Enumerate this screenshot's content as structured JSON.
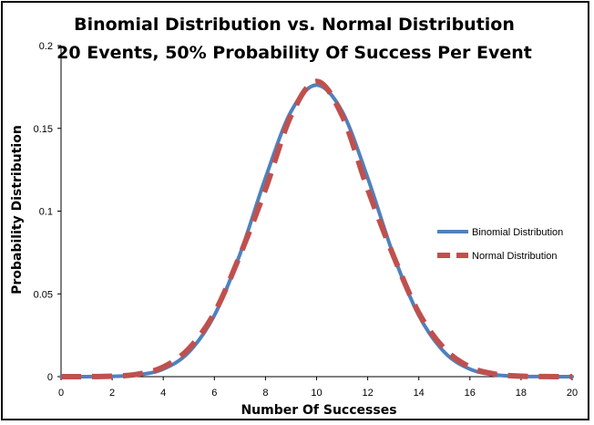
{
  "chart_data": {
    "type": "line",
    "title": "Binomial Distribution vs. Normal Distribution",
    "subtitle": "20 Events, 50% Probability Of Success Per Event",
    "xlabel": "Number Of Successes",
    "ylabel": "Probability Distribution",
    "xlim": [
      0,
      20
    ],
    "ylim": [
      0,
      0.2
    ],
    "x_ticks": [
      "0",
      "2",
      "4",
      "6",
      "8",
      "10",
      "12",
      "14",
      "16",
      "18",
      "20"
    ],
    "y_ticks": [
      "0",
      "0.05",
      "0.1",
      "0.15",
      "0.2"
    ],
    "grid": false,
    "legend_position": "right",
    "x": [
      0,
      1,
      2,
      3,
      4,
      5,
      6,
      7,
      8,
      9,
      10,
      11,
      12,
      13,
      14,
      15,
      16,
      17,
      18,
      19,
      20
    ],
    "series": [
      {
        "name": "Binomial Distribution",
        "color": "#4f81bd",
        "style": "solid",
        "values": [
          1e-06,
          2e-05,
          0.0002,
          0.0011,
          0.0046,
          0.0148,
          0.037,
          0.0739,
          0.1201,
          0.1602,
          0.1762,
          0.1602,
          0.1201,
          0.0739,
          0.037,
          0.0148,
          0.0046,
          0.0011,
          0.0002,
          2e-05,
          1e-06
        ]
      },
      {
        "name": "Normal Distribution",
        "color": "#c0504d",
        "style": "dashed",
        "values": [
          4e-06,
          4e-05,
          0.0003,
          0.0015,
          0.0058,
          0.0169,
          0.0385,
          0.0733,
          0.1133,
          0.1577,
          0.1784,
          0.1577,
          0.1133,
          0.0733,
          0.0385,
          0.0169,
          0.0058,
          0.0015,
          0.0003,
          4e-05,
          4e-06
        ]
      }
    ]
  }
}
